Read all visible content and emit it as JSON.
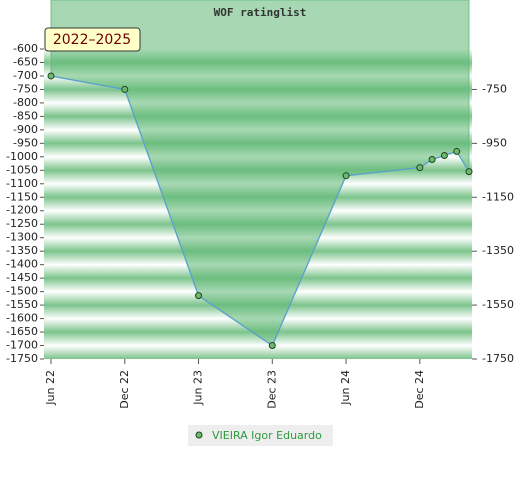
{
  "chart_data": {
    "type": "area",
    "title": "WOF ratinglist",
    "annotation": "2022–2025",
    "x": [
      "2022-06",
      "2022-12",
      "2023-06",
      "2023-12",
      "2024-06",
      "2024-12",
      "2025-01",
      "2025-02",
      "2025-03",
      "2025-04"
    ],
    "series": [
      {
        "name": "VIEIRA Igor Eduardo",
        "color": "#5aa0d0",
        "marker_color": "#6cbb6c",
        "area_color": "#5fb874",
        "values": [
          -700,
          -750,
          -1515,
          -1700,
          -1070,
          -1040,
          -1010,
          -995,
          -980,
          -1055
        ]
      }
    ],
    "xlim": [
      "2022-06",
      "2025-04"
    ],
    "xticks": [
      {
        "value": "2022-06",
        "label": "Jun 22"
      },
      {
        "value": "2022-12",
        "label": "Dec 22"
      },
      {
        "value": "2023-06",
        "label": "Jun 23"
      },
      {
        "value": "2023-12",
        "label": "Dec 23"
      },
      {
        "value": "2024-06",
        "label": "Jun 24"
      },
      {
        "value": "2024-12",
        "label": "Dec 24"
      }
    ],
    "ylim": [
      -1750,
      -600
    ],
    "yticks": [
      -600,
      -650,
      -700,
      -750,
      -800,
      -850,
      -900,
      -950,
      -1000,
      -1050,
      -1100,
      -1150,
      -1200,
      -1250,
      -1300,
      -1350,
      -1400,
      -1450,
      -1500,
      -1550,
      -1600,
      -1650,
      -1700,
      -1750
    ],
    "y2lim": [
      -1750,
      -600
    ],
    "y2ticks": [
      -750,
      -950,
      -1150,
      -1350,
      -1550,
      -1750
    ]
  }
}
